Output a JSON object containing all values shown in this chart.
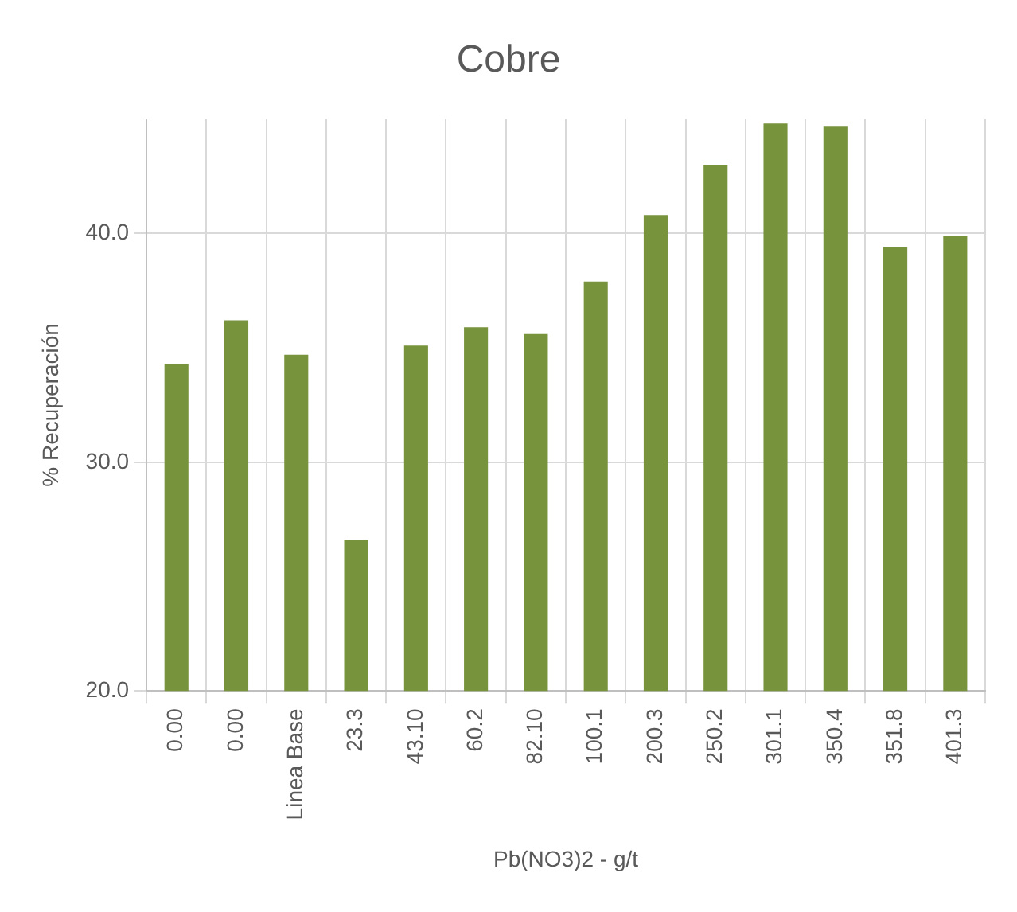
{
  "chart_data": {
    "type": "bar",
    "title": "Cobre",
    "xlabel": "Pb(NO3)2 - g/t",
    "ylabel": "% Recuperación",
    "categories": [
      "0.00",
      "0.00",
      "Linea Base",
      "23.3",
      "43.10",
      "60.2",
      "82.10",
      "100.1",
      "200.3",
      "250.2",
      "301.1",
      "350.4",
      "351.8",
      "401.3"
    ],
    "values": [
      34.3,
      36.2,
      34.7,
      26.6,
      35.1,
      35.9,
      35.6,
      37.9,
      40.8,
      43.0,
      44.8,
      44.7,
      39.4,
      39.9
    ],
    "color": "#77933c",
    "ylim": [
      20,
      45
    ],
    "yticks": [
      {
        "value": 20,
        "label": "20.0"
      },
      {
        "value": 30,
        "label": "30.0"
      },
      {
        "value": 40,
        "label": "40.0"
      }
    ],
    "grid": true,
    "legend": false
  }
}
